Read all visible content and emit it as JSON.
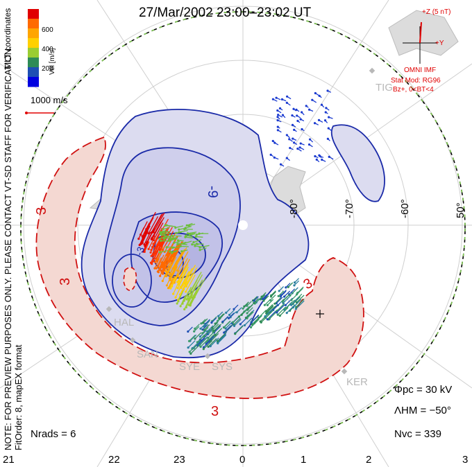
{
  "title": "27/Mar/2002 23:00–23:02 UT",
  "side_note_line1": "NOTE: FOR PREVIEW PURPOSES ONLY. PLEASE CONTACT VT-SD STAFF FOR VERIFICATION.",
  "side_note_line2": "FitOrder: 8, mapEX format",
  "coordinate_label": "MLT coordinates",
  "colorbar": {
    "unit_label": "Vel [m/s]",
    "ticks": [
      "600",
      "400",
      "200"
    ],
    "colors": [
      "#e00000",
      "#ff6a00",
      "#ffa500",
      "#ffd000",
      "#9acd32",
      "#2e8b57",
      "#1e4fb4",
      "#0000e0"
    ]
  },
  "scale_vector_label": "1000 m/s",
  "imf": {
    "z_label": "+Z (5 nT)",
    "y_label": "+Y",
    "source": "OMNI IMF",
    "stat_mod": "Stat Mod: RG96",
    "condition": "Bz+, 0<BT<4"
  },
  "latitude_labels": [
    "-80°",
    "-70°",
    "-60°",
    "50°"
  ],
  "contour_labels": [
    "-9",
    "3",
    "3",
    "3",
    "3",
    "-3"
  ],
  "stations": [
    "TIG",
    "HAL",
    "SAN",
    "SYE",
    "SYS",
    "KER"
  ],
  "stats": {
    "phi_pc": "Φpc = 30 kV",
    "lambda_hm": "ΛHM = −50°",
    "n_vc": "Nvc = 339",
    "n_rads": "Nrads = 6"
  },
  "mlt_ticks": [
    "21",
    "22",
    "23",
    "0",
    "1",
    "2",
    "3"
  ],
  "colors": {
    "negative_cell_fill": "#dcdcf0",
    "negative_cell_line": "#1a2aa8",
    "positive_cell_fill": "#f4d8d2",
    "positive_cell_line": "#d01010",
    "boundary_dash_a": "#000000",
    "boundary_dash_b": "#7ec850",
    "grid": "#cfcfcf",
    "land": "#d2d2d2"
  }
}
